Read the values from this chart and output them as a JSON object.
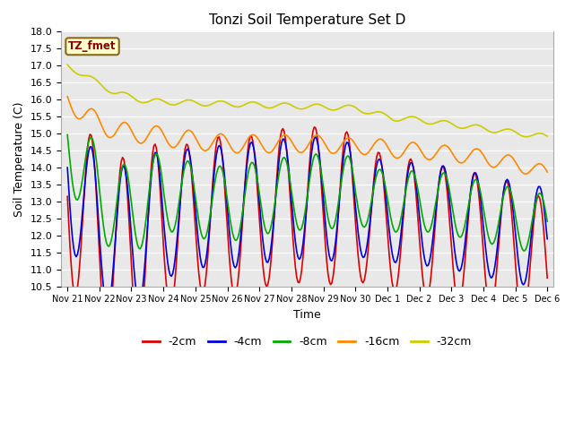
{
  "title": "Tonzi Soil Temperature Set D",
  "xlabel": "Time",
  "ylabel": "Soil Temperature (C)",
  "ylim": [
    10.5,
    18.0
  ],
  "yticks": [
    10.5,
    11.0,
    11.5,
    12.0,
    12.5,
    13.0,
    13.5,
    14.0,
    14.5,
    15.0,
    15.5,
    16.0,
    16.5,
    17.0,
    17.5,
    18.0
  ],
  "xtick_labels": [
    "Nov 21",
    "Nov 22",
    "Nov 23",
    "Nov 24",
    "Nov 25",
    "Nov 26",
    "Nov 27",
    "Nov 28",
    "Nov 29",
    "Nov 30",
    "Dec 1",
    "Dec 2",
    "Dec 3",
    "Dec 4",
    "Dec 5",
    "Dec 6"
  ],
  "colors": {
    "m2cm": "#dd0000",
    "m4cm": "#0000dd",
    "m8cm": "#00aa00",
    "m16cm": "#ff8800",
    "m32cm": "#cccc00"
  },
  "legend_labels": [
    "-2cm",
    "-4cm",
    "-8cm",
    "-16cm",
    "-32cm"
  ],
  "tz_fmet_label": "TZ_fmet"
}
